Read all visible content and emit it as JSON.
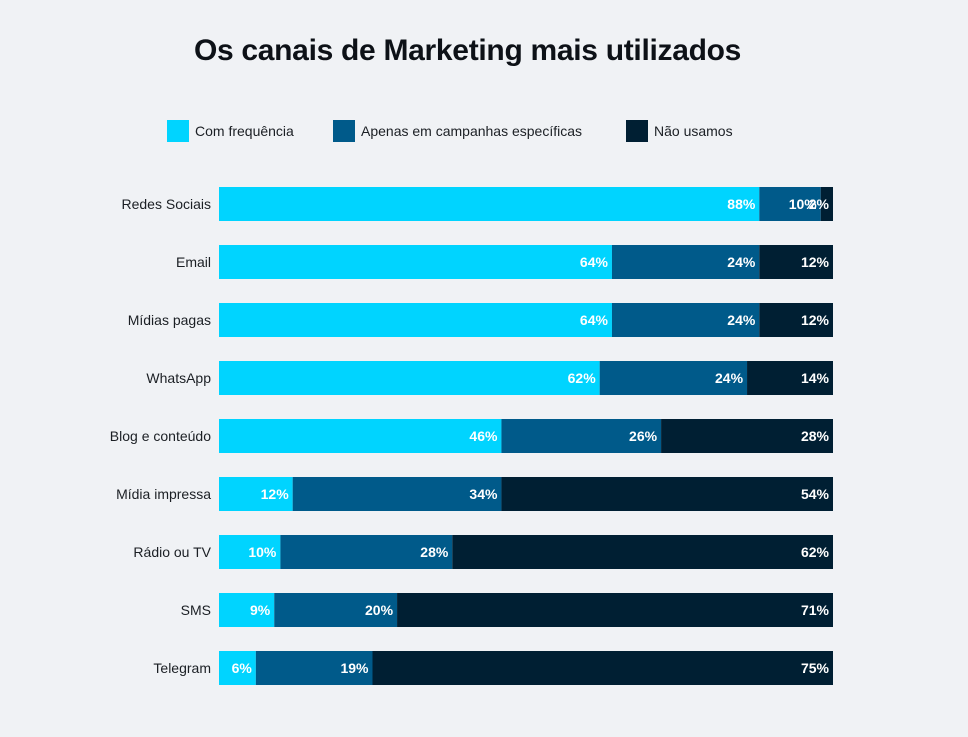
{
  "title": "Os canais de Marketing mais utilizados",
  "chart_data": {
    "type": "bar",
    "orientation": "horizontal",
    "stacked": true,
    "title": "Os canais de Marketing mais utilizados",
    "categories": [
      "Redes Sociais",
      "Email",
      "Mídias pagas",
      "WhatsApp",
      "Blog e conteúdo",
      "Mídia impressa",
      "Rádio ou TV",
      "SMS",
      "Telegram"
    ],
    "series": [
      {
        "name": "Com frequência",
        "color": "#00d4ff",
        "values": [
          88,
          64,
          64,
          62,
          46,
          12,
          10,
          9,
          6
        ],
        "labels": [
          "88%",
          "64%",
          "64%",
          "62%",
          "46%",
          "12%",
          "10%",
          "9%",
          "6%"
        ]
      },
      {
        "name": "Apenas em campanhas específicas",
        "color": "#005a8a",
        "values": [
          10,
          24,
          24,
          24,
          26,
          34,
          28,
          20,
          19
        ],
        "labels": [
          "10%",
          "24%",
          "24%",
          "24%",
          "26%",
          "34%",
          "28%",
          "20%",
          "19%"
        ]
      },
      {
        "name": "Não usamos",
        "color": "#001f33",
        "values": [
          2,
          12,
          12,
          14,
          28,
          54,
          62,
          71,
          75
        ],
        "labels": [
          "2%",
          "12%",
          "12%",
          "14%",
          "28%",
          "54%",
          "62%",
          "71%",
          "75%"
        ]
      }
    ],
    "legend_position": "top",
    "grid": false
  }
}
